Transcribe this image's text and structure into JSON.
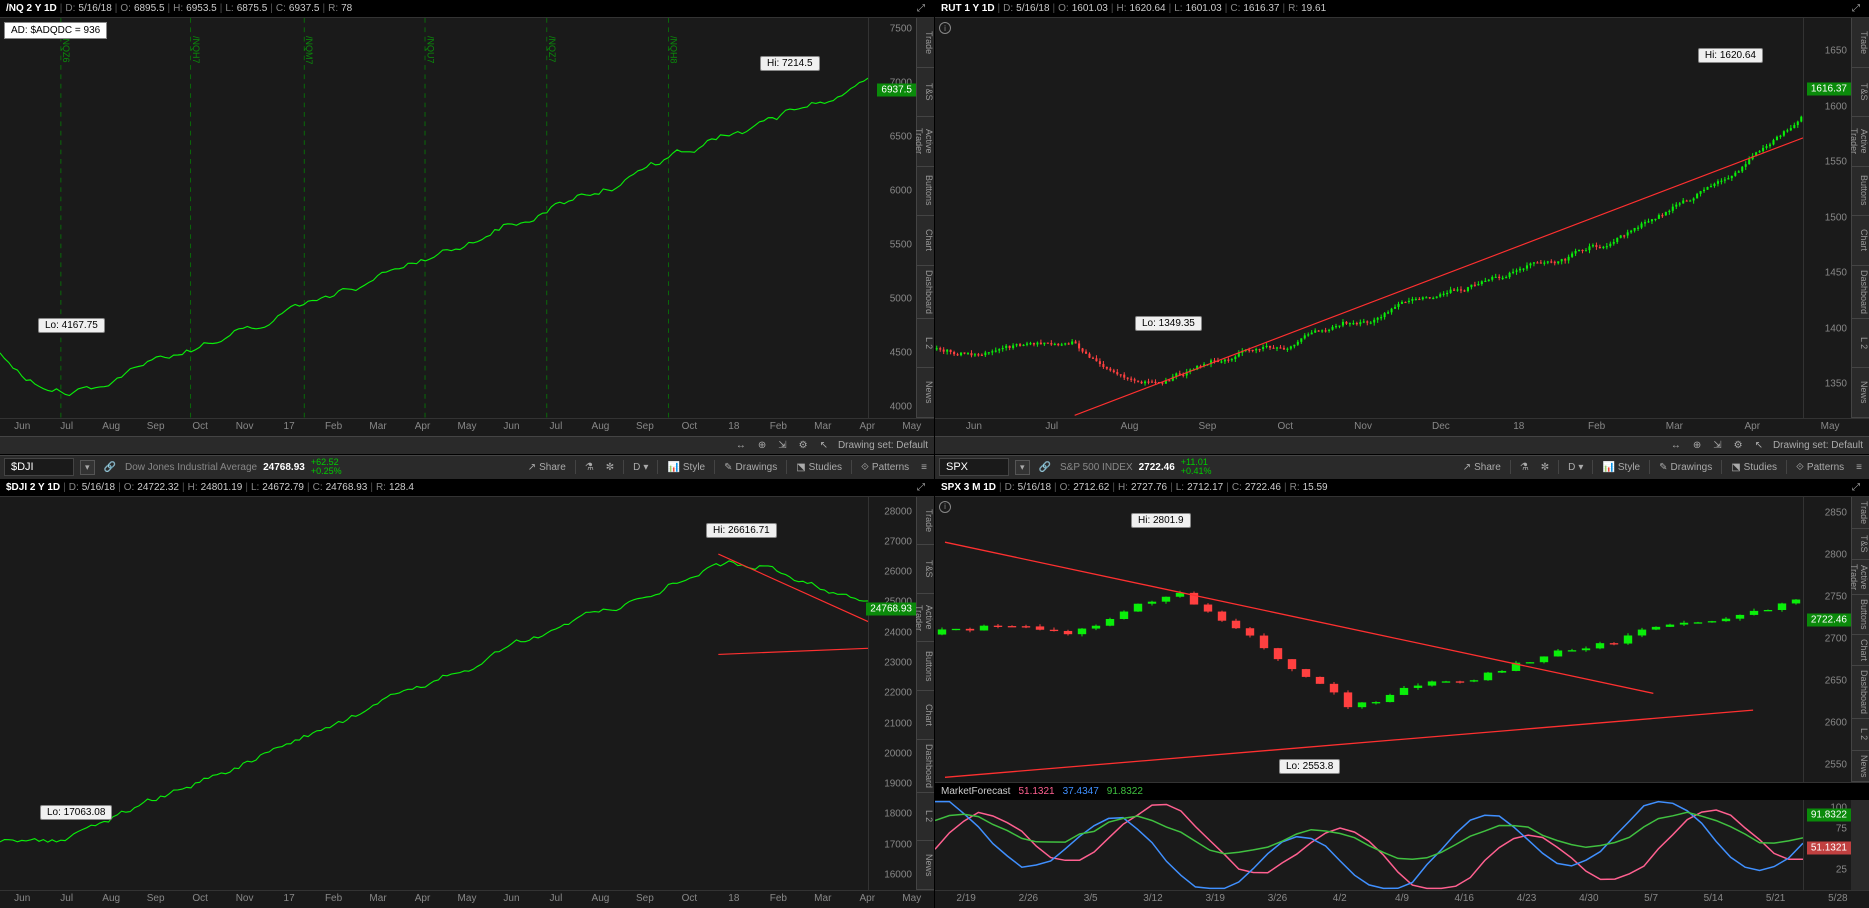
{
  "panels": {
    "nq": {
      "symbol": "/NQ 2 Y 1D",
      "date": "5/16/18",
      "o": "6895.5",
      "h": "6953.5",
      "l": "6875.5",
      "c": "6937.5",
      "r": "78",
      "ad_label": "AD: $ADQDC = 936",
      "hi_callout": "Hi: 7214.5",
      "lo_callout": "Lo: 4167.75",
      "current_price": "6937.5",
      "yticks": [
        7500,
        7000,
        6500,
        6000,
        5500,
        5000,
        4500,
        4000
      ],
      "ylim": [
        3900,
        7600
      ],
      "xticks": [
        "Jun",
        "Jul",
        "Aug",
        "Sep",
        "Oct",
        "Nov",
        "17",
        "Feb",
        "Mar",
        "Apr",
        "May",
        "Jun",
        "Jul",
        "Aug",
        "Sep",
        "Oct",
        "18",
        "Feb",
        "Mar",
        "Apr",
        "May"
      ],
      "vlabels": [
        "/NQZ6",
        "/NQH7",
        "/NQM7",
        "/NQU7",
        "/NQZ7",
        "/NQH8"
      ],
      "series_color": "#0aee0a",
      "bg": "#1a1a1a"
    },
    "rut": {
      "symbol": "RUT 1 Y 1D",
      "date": "5/16/18",
      "o": "1601.03",
      "h": "1620.64",
      "l": "1601.03",
      "c": "1616.37",
      "r": "19.61",
      "hi_callout": "Hi: 1620.64",
      "lo_callout": "Lo: 1349.35",
      "current_price": "1616.37",
      "yticks": [
        1650,
        1600,
        1550,
        1500,
        1450,
        1400,
        1350
      ],
      "ylim": [
        1320,
        1680
      ],
      "xticks": [
        "Jun",
        "Jul",
        "Aug",
        "Sep",
        "Oct",
        "Nov",
        "Dec",
        "18",
        "Feb",
        "Mar",
        "Apr",
        "May"
      ],
      "trendline_color": "#ff3030"
    },
    "dji": {
      "symbol": "$DJI 2 Y 1D",
      "date": "5/16/18",
      "o": "24722.32",
      "h": "24801.19",
      "l": "24672.79",
      "c": "24768.93",
      "r": "128.4",
      "hi_callout": "Hi: 26616.71",
      "lo_callout": "Lo: 17063.08",
      "current_price": "24768.93",
      "yticks": [
        28000,
        27000,
        26000,
        25000,
        24000,
        23000,
        22000,
        21000,
        20000,
        19000,
        18000,
        17000,
        16000
      ],
      "ylim": [
        15500,
        28500
      ],
      "xticks": [
        "Jun",
        "Jul",
        "Aug",
        "Sep",
        "Oct",
        "Nov",
        "17",
        "Feb",
        "Mar",
        "Apr",
        "May",
        "Jun",
        "Jul",
        "Aug",
        "Sep",
        "Oct",
        "18",
        "Feb",
        "Mar",
        "Apr",
        "May"
      ],
      "toolbar": {
        "input": "$DJI",
        "desc": "Dow Jones Industrial Average",
        "price": "24768.93",
        "chg1": "+62.52",
        "chg2": "+0.25%",
        "share": "Share",
        "tf": "D",
        "style": "Style",
        "drawings": "Drawings",
        "studies": "Studies",
        "patterns": "Patterns"
      },
      "trendline_color": "#ff3030"
    },
    "spx": {
      "symbol": "SPX 3 M 1D",
      "date": "5/16/18",
      "o": "2712.62",
      "h": "2727.76",
      "l": "2712.17",
      "c": "2722.46",
      "r": "15.59",
      "hi_callout": "Hi: 2801.9",
      "lo_callout": "Lo: 2553.8",
      "current_price": "2722.46",
      "yticks": [
        2850,
        2800,
        2750,
        2700,
        2650,
        2600,
        2550
      ],
      "ylim": [
        2530,
        2870
      ],
      "xticks": [
        "2/19",
        "2/26",
        "3/5",
        "3/12",
        "3/19",
        "3/26",
        "4/2",
        "4/9",
        "4/16",
        "4/23",
        "4/30",
        "5/7",
        "5/14",
        "5/21",
        "5/28"
      ],
      "toolbar": {
        "input": "SPX",
        "desc": "S&P 500 INDEX",
        "price": "2722.46",
        "chg1": "+11.01",
        "chg2": "+0.41%",
        "share": "Share",
        "tf": "D",
        "style": "Style",
        "drawings": "Drawings",
        "studies": "Studies",
        "patterns": "Patterns"
      },
      "indicator": {
        "name": "MarketForecast",
        "v1": "51.1321",
        "v2": "37.4347",
        "v3": "91.8322"
      },
      "sub_yticks": [
        100,
        75,
        50,
        25
      ],
      "sub_ylim": [
        0,
        110
      ],
      "sub_tags": {
        "v3": "91.8322",
        "v1": "51.1321"
      },
      "trendline_color": "#ff3030"
    }
  },
  "sidebar_tabs": [
    "Trade",
    "T&S",
    "Active Trader",
    "Buttons",
    "Chart",
    "Dashboard",
    "L 2",
    "News"
  ],
  "footer": {
    "drawing_set": "Drawing set: Default"
  },
  "colors": {
    "up": "#0aee0a",
    "down": "#ff4040",
    "bg": "#1a1a1a",
    "axis": "#888",
    "grid": "#2a2a2a"
  }
}
